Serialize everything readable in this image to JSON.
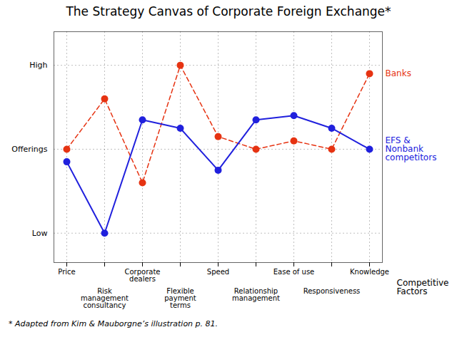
{
  "chart_data": {
    "type": "line",
    "title": "The Strategy Canvas of Corporate Foreign Exchange*",
    "caption": "* Adapted from Kim & Mauborgne’s illustration p. 81.",
    "xlabel": "Competitive\nFactors",
    "categories": [
      "Price",
      "Risk\nmanagement\nconsultancy",
      "Corporate\ndealers",
      "Flexible\npayment\nterms",
      "Speed",
      "Relationship\nmanagement",
      "Ease of use",
      "Responsiveness",
      "Knowledge"
    ],
    "series": [
      {
        "name": "Banks",
        "color": "#e63312",
        "line_style": "dashed",
        "marker": "circle",
        "values": [
          3.0,
          4.2,
          2.2,
          5.0,
          3.3,
          3.0,
          3.2,
          3.0,
          4.8
        ]
      },
      {
        "name": "EFS &\nNonbank\ncompetitors",
        "color": "#2020dd",
        "line_style": "solid",
        "marker": "circle",
        "values": [
          2.7,
          1.0,
          3.7,
          3.5,
          2.5,
          3.7,
          3.8,
          3.5,
          3.0
        ]
      }
    ],
    "ylim": [
      0.3,
      5.8
    ],
    "yticks": [
      {
        "value": 1,
        "label": "Low"
      },
      {
        "value": 3,
        "label": "Offerings"
      },
      {
        "value": 5,
        "label": "High"
      }
    ],
    "grid": true,
    "legend": "right"
  }
}
